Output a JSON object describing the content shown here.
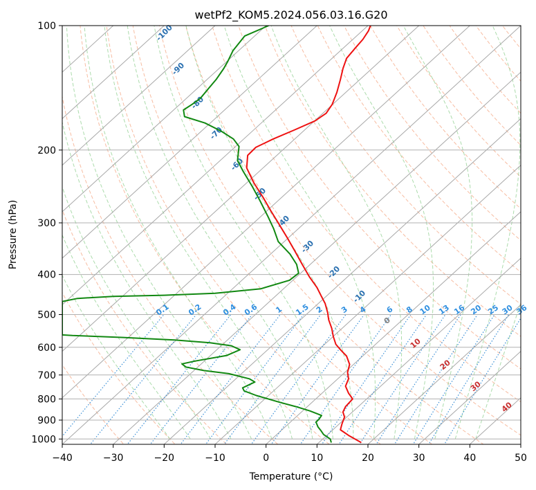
{
  "chart_data": {
    "type": "line",
    "title": "wetPf2_KOM5.2024.056.03.16.G20",
    "xlabel": "Temperature (°C)",
    "ylabel": "Pressure (hPa)",
    "xlim": [
      -40,
      50
    ],
    "ylim": [
      1030,
      100
    ],
    "y_scale": "log",
    "grid": true,
    "x_ticks": [
      "−40",
      "−30",
      "−20",
      "−10",
      "0",
      "10",
      "20",
      "30",
      "40",
      "50"
    ],
    "x_tick_values": [
      -40,
      -30,
      -20,
      -10,
      0,
      10,
      20,
      30,
      40,
      50
    ],
    "y_ticks": [
      "100",
      "200",
      "300",
      "400",
      "500",
      "600",
      "700",
      "800",
      "900",
      "1000"
    ],
    "y_tick_values": [
      100,
      200,
      300,
      400,
      500,
      600,
      700,
      800,
      900,
      1000
    ],
    "series": [
      {
        "color": "#ee1111",
        "role": "temperature",
        "points": [
          [
            18.7,
            1020
          ],
          [
            16.2,
            980
          ],
          [
            14.6,
            950
          ],
          [
            14.9,
            920
          ],
          [
            15.4,
            885
          ],
          [
            15.1,
            860
          ],
          [
            15.6,
            835
          ],
          [
            17.0,
            800
          ],
          [
            16.2,
            775
          ],
          [
            15.6,
            745
          ],
          [
            16.2,
            715
          ],
          [
            16.0,
            690
          ],
          [
            16.4,
            660
          ],
          [
            15.8,
            630
          ],
          [
            14.7,
            610
          ],
          [
            13.7,
            590
          ],
          [
            13.2,
            565
          ],
          [
            12.9,
            540
          ],
          [
            12.3,
            515
          ],
          [
            12.1,
            495
          ],
          [
            11.6,
            470
          ],
          [
            10.8,
            450
          ],
          [
            10.0,
            430
          ],
          [
            8.5,
            405
          ],
          [
            7.2,
            380
          ],
          [
            5.6,
            350
          ],
          [
            4.1,
            325
          ],
          [
            2.4,
            300
          ],
          [
            0.9,
            280
          ],
          [
            -0.6,
            260
          ],
          [
            -2.4,
            240
          ],
          [
            -3.8,
            221
          ],
          [
            -3.6,
            206
          ],
          [
            -2.0,
            197
          ],
          [
            1.4,
            188
          ],
          [
            5.5,
            179
          ],
          [
            9.6,
            170
          ],
          [
            11.8,
            163
          ],
          [
            13.0,
            155
          ],
          [
            13.9,
            145
          ],
          [
            14.6,
            135
          ],
          [
            15.1,
            127
          ],
          [
            15.8,
            120
          ],
          [
            17.6,
            113
          ],
          [
            19.0,
            108
          ],
          [
            20.1,
            103
          ],
          [
            20.5,
            100
          ]
        ]
      },
      {
        "color": "#118811",
        "role": "dewpoint",
        "points": [
          [
            12.8,
            1020
          ],
          [
            12.6,
            1000
          ],
          [
            11.3,
            975
          ],
          [
            10.8,
            955
          ],
          [
            10.2,
            935
          ],
          [
            9.8,
            910
          ],
          [
            10.4,
            895
          ],
          [
            10.9,
            877
          ],
          [
            8.6,
            855
          ],
          [
            5.9,
            835
          ],
          [
            2.7,
            815
          ],
          [
            -1.9,
            785
          ],
          [
            -4.3,
            765
          ],
          [
            -4.6,
            752
          ],
          [
            -3.4,
            740
          ],
          [
            -2.2,
            728
          ],
          [
            -3.3,
            715
          ],
          [
            -7.3,
            695
          ],
          [
            -12.2,
            683
          ],
          [
            -15.7,
            670
          ],
          [
            -16.5,
            658
          ],
          [
            -14.0,
            648
          ],
          [
            -7.7,
            628
          ],
          [
            -5.1,
            608
          ],
          [
            -6.8,
            595
          ],
          [
            -11.0,
            585
          ],
          [
            -18.0,
            576
          ],
          [
            -28.0,
            568
          ],
          [
            -38.0,
            562
          ],
          [
            -40.0,
            560
          ],
          [
            -40.0,
            465
          ],
          [
            -37.0,
            457
          ],
          [
            -30.0,
            452
          ],
          [
            -20.0,
            449
          ],
          [
            -10.0,
            444
          ],
          [
            -1.0,
            433
          ],
          [
            4.6,
            413
          ],
          [
            6.4,
            397
          ],
          [
            6.0,
            378
          ],
          [
            4.7,
            357
          ],
          [
            2.4,
            333
          ],
          [
            1.5,
            310
          ],
          [
            0.4,
            290
          ],
          [
            -1.2,
            265
          ],
          [
            -2.7,
            245
          ],
          [
            -4.5,
            225
          ],
          [
            -5.6,
            212
          ],
          [
            -5.3,
            196
          ],
          [
            -6.4,
            188
          ],
          [
            -8.8,
            180
          ],
          [
            -12.0,
            172
          ],
          [
            -16.0,
            166
          ],
          [
            -16.2,
            160
          ],
          [
            -14.5,
            155
          ],
          [
            -12.9,
            150
          ],
          [
            -11.3,
            142
          ],
          [
            -9.8,
            135
          ],
          [
            -8.3,
            127
          ],
          [
            -7.5,
            122
          ],
          [
            -6.5,
            115
          ],
          [
            -4.2,
            106
          ],
          [
            0.5,
            100
          ]
        ]
      }
    ],
    "isotherm_skew_labels": [
      "-100",
      "-90",
      "-80",
      "-70",
      "-60",
      "-50",
      "-40",
      "-30",
      "-20",
      "-10"
    ],
    "mixing_ratio_labels": [
      "0.1",
      "0.2",
      "0.4",
      "0.6",
      "1",
      "1.5",
      "2",
      "3",
      "4",
      "6",
      "8",
      "10",
      "13",
      "16",
      "20",
      "25",
      "30",
      "36"
    ],
    "adiabat_labels": [
      "0",
      "10",
      "20",
      "30",
      "40"
    ]
  }
}
